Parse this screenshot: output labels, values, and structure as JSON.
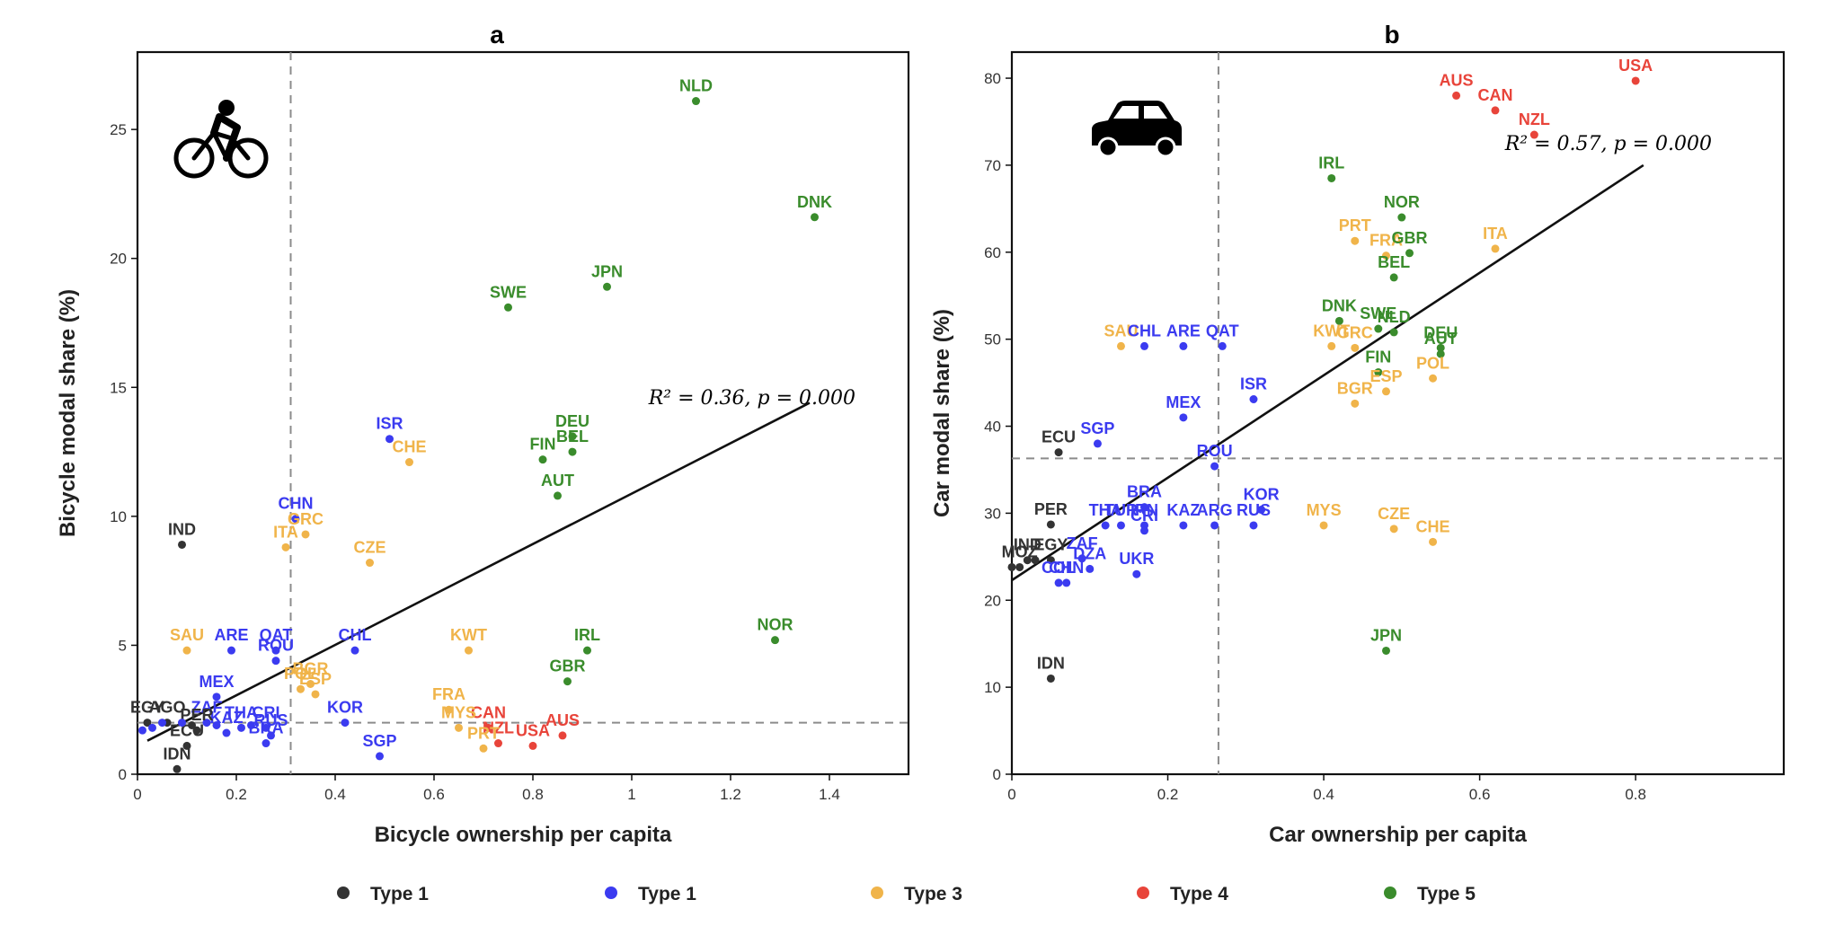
{
  "legend": [
    {
      "label": "Type 1",
      "color": "#333333"
    },
    {
      "label": "Type 1",
      "color": "#3b3bf0"
    },
    {
      "label": "Type 3",
      "color": "#f0b44a"
    },
    {
      "label": "Type 4",
      "color": "#e8443a"
    },
    {
      "label": "Type 5",
      "color": "#3a8c2c"
    }
  ],
  "chart_data": [
    {
      "type": "scatter",
      "panel": "a",
      "icon": "bicycle-icon",
      "xlabel": "Bicycle ownership per capita",
      "ylabel": "Bicycle modal share (%)",
      "xlim": [
        0,
        1.56
      ],
      "ylim": [
        0,
        28
      ],
      "x_ticks": [
        "0",
        "0.2",
        "0.4",
        "0.6",
        "0.8",
        "1",
        "1.2",
        "1.4"
      ],
      "x_tick_values": [
        0,
        0.2,
        0.4,
        0.6,
        0.8,
        1.0,
        1.2,
        1.4
      ],
      "y_ticks": [
        "0",
        "5",
        "10",
        "15",
        "20",
        "25"
      ],
      "y_tick_values": [
        0,
        5,
        10,
        15,
        20,
        25
      ],
      "vline": 0.31,
      "hline": 2.0,
      "fit_line": [
        [
          0.02,
          1.3
        ],
        [
          1.36,
          14.4
        ]
      ],
      "stat": "R² = 0.36, p = 0.000",
      "points": [
        {
          "label": "NLD",
          "x": 1.13,
          "y": 26.1,
          "type": 4
        },
        {
          "label": "DNK",
          "x": 1.37,
          "y": 21.6,
          "type": 4
        },
        {
          "label": "JPN",
          "x": 0.95,
          "y": 18.9,
          "type": 4
        },
        {
          "label": "SWE",
          "x": 0.75,
          "y": 18.1,
          "type": 4
        },
        {
          "label": "ISR",
          "x": 0.51,
          "y": 13.0,
          "type": 1
        },
        {
          "label": "CHE",
          "x": 0.55,
          "y": 12.1,
          "type": 2
        },
        {
          "label": "DEU",
          "x": 0.88,
          "y": 13.1,
          "type": 4
        },
        {
          "label": "FIN",
          "x": 0.82,
          "y": 12.2,
          "type": 4
        },
        {
          "label": "BEL",
          "x": 0.88,
          "y": 12.5,
          "type": 4
        },
        {
          "label": "AUT",
          "x": 0.85,
          "y": 10.8,
          "type": 4
        },
        {
          "label": "IND",
          "x": 0.09,
          "y": 8.9,
          "type": 0
        },
        {
          "label": "CHN",
          "x": 0.32,
          "y": 9.9,
          "type": 1
        },
        {
          "label": "GRC",
          "x": 0.34,
          "y": 9.3,
          "type": 2
        },
        {
          "label": "ITA",
          "x": 0.3,
          "y": 8.8,
          "type": 2
        },
        {
          "label": "CZE",
          "x": 0.47,
          "y": 8.2,
          "type": 2
        },
        {
          "label": "SAU",
          "x": 0.1,
          "y": 4.8,
          "type": 2
        },
        {
          "label": "ARE",
          "x": 0.19,
          "y": 4.8,
          "type": 1
        },
        {
          "label": "QAT",
          "x": 0.28,
          "y": 4.8,
          "type": 1
        },
        {
          "label": "ROU",
          "x": 0.28,
          "y": 4.4,
          "type": 1
        },
        {
          "label": "CHL",
          "x": 0.44,
          "y": 4.8,
          "type": 1
        },
        {
          "label": "KWT",
          "x": 0.67,
          "y": 4.8,
          "type": 2
        },
        {
          "label": "IRL",
          "x": 0.91,
          "y": 4.8,
          "type": 4
        },
        {
          "label": "NOR",
          "x": 1.29,
          "y": 5.2,
          "type": 4
        },
        {
          "label": "GBR",
          "x": 0.87,
          "y": 3.6,
          "type": 4
        },
        {
          "label": "MEX",
          "x": 0.16,
          "y": 3.0,
          "type": 1
        },
        {
          "label": "BGR",
          "x": 0.35,
          "y": 3.5,
          "type": 2
        },
        {
          "label": "POL",
          "x": 0.33,
          "y": 3.3,
          "type": 2
        },
        {
          "label": "ESP",
          "x": 0.36,
          "y": 3.1,
          "type": 2
        },
        {
          "label": "FRA",
          "x": 0.63,
          "y": 2.5,
          "type": 2
        },
        {
          "label": "CAN",
          "x": 0.71,
          "y": 1.8,
          "type": 3
        },
        {
          "label": "USA",
          "x": 0.8,
          "y": 1.1,
          "type": 3
        },
        {
          "label": "AUS",
          "x": 0.86,
          "y": 1.5,
          "type": 3
        },
        {
          "label": "NZL",
          "x": 0.73,
          "y": 1.2,
          "type": 3
        },
        {
          "label": "MYS",
          "x": 0.65,
          "y": 1.8,
          "type": 2
        },
        {
          "label": "PRT",
          "x": 0.7,
          "y": 1.0,
          "type": 2
        },
        {
          "label": "EGY",
          "x": 0.02,
          "y": 2.0,
          "type": 0
        },
        {
          "label": "AGO",
          "x": 0.06,
          "y": 2.0,
          "type": 0
        },
        {
          "label": "ZAF",
          "x": 0.14,
          "y": 2.0,
          "type": 1
        },
        {
          "label": "THA",
          "x": 0.21,
          "y": 1.8,
          "type": 1
        },
        {
          "label": "CRI",
          "x": 0.26,
          "y": 1.8,
          "type": 1
        },
        {
          "label": "KOR",
          "x": 0.42,
          "y": 2.0,
          "type": 1
        },
        {
          "label": "KAZ",
          "x": 0.18,
          "y": 1.6,
          "type": 1
        },
        {
          "label": "RUS",
          "x": 0.27,
          "y": 1.5,
          "type": 1
        },
        {
          "label": "BRA",
          "x": 0.26,
          "y": 1.2,
          "type": 1
        },
        {
          "label": "SGP",
          "x": 0.49,
          "y": 0.7,
          "type": 1
        },
        {
          "label": "PER",
          "x": 0.12,
          "y": 1.7,
          "type": 0
        },
        {
          "label": "ECU",
          "x": 0.1,
          "y": 1.1,
          "type": 0
        },
        {
          "label": "IDN",
          "x": 0.08,
          "y": 0.2,
          "type": 0
        },
        {
          "label": "",
          "x": 0.03,
          "y": 1.8,
          "type": 1
        },
        {
          "label": "",
          "x": 0.05,
          "y": 2.0,
          "type": 1
        },
        {
          "label": "",
          "x": 0.09,
          "y": 2.0,
          "type": 1
        },
        {
          "label": "",
          "x": 0.11,
          "y": 1.9,
          "type": 0
        },
        {
          "label": "",
          "x": 0.16,
          "y": 1.9,
          "type": 1
        },
        {
          "label": "",
          "x": 0.23,
          "y": 1.9,
          "type": 1
        },
        {
          "label": "",
          "x": 0.01,
          "y": 1.7,
          "type": 1
        }
      ]
    },
    {
      "type": "scatter",
      "panel": "b",
      "icon": "car-icon",
      "xlabel": "Car ownership per capita",
      "ylabel": "Car modal share (%)",
      "xlim": [
        0,
        0.99
      ],
      "ylim": [
        0,
        83
      ],
      "x_ticks": [
        "0",
        "0.2",
        "0.4",
        "0.6",
        "0.8"
      ],
      "x_tick_values": [
        0,
        0.2,
        0.4,
        0.6,
        0.8
      ],
      "y_ticks": [
        "0",
        "10",
        "20",
        "30",
        "40",
        "50",
        "60",
        "70",
        "80"
      ],
      "y_tick_values": [
        0,
        10,
        20,
        30,
        40,
        50,
        60,
        70,
        80
      ],
      "vline": 0.265,
      "hline": 36.3,
      "fit_line": [
        [
          0.0,
          22.3
        ],
        [
          0.81,
          70.0
        ]
      ],
      "stat": "R² = 0.57, p = 0.000",
      "points": [
        {
          "label": "AUS",
          "x": 0.57,
          "y": 78.0,
          "type": 3
        },
        {
          "label": "CAN",
          "x": 0.62,
          "y": 76.3,
          "type": 3
        },
        {
          "label": "NZL",
          "x": 0.67,
          "y": 73.5,
          "type": 3
        },
        {
          "label": "USA",
          "x": 0.8,
          "y": 79.7,
          "type": 3
        },
        {
          "label": "IRL",
          "x": 0.41,
          "y": 68.5,
          "type": 4
        },
        {
          "label": "NOR",
          "x": 0.5,
          "y": 64.0,
          "type": 4
        },
        {
          "label": "PRT",
          "x": 0.44,
          "y": 61.3,
          "type": 2
        },
        {
          "label": "FRA",
          "x": 0.48,
          "y": 59.6,
          "type": 2
        },
        {
          "label": "GBR",
          "x": 0.51,
          "y": 59.9,
          "type": 4
        },
        {
          "label": "ITA",
          "x": 0.62,
          "y": 60.4,
          "type": 2
        },
        {
          "label": "BEL",
          "x": 0.49,
          "y": 57.1,
          "type": 4
        },
        {
          "label": "DNK",
          "x": 0.42,
          "y": 52.1,
          "type": 4
        },
        {
          "label": "SWE",
          "x": 0.47,
          "y": 51.2,
          "type": 4
        },
        {
          "label": "NLD",
          "x": 0.49,
          "y": 50.8,
          "type": 4
        },
        {
          "label": "KWT",
          "x": 0.41,
          "y": 49.2,
          "type": 2
        },
        {
          "label": "GRC",
          "x": 0.44,
          "y": 49.0,
          "type": 2
        },
        {
          "label": "FIN",
          "x": 0.47,
          "y": 46.2,
          "type": 4
        },
        {
          "label": "DEU",
          "x": 0.55,
          "y": 49.0,
          "type": 4
        },
        {
          "label": "AUT",
          "x": 0.55,
          "y": 48.3,
          "type": 4
        },
        {
          "label": "BGR",
          "x": 0.44,
          "y": 42.6,
          "type": 2
        },
        {
          "label": "ESP",
          "x": 0.48,
          "y": 44.0,
          "type": 2
        },
        {
          "label": "POL",
          "x": 0.54,
          "y": 45.5,
          "type": 2
        },
        {
          "label": "SAU",
          "x": 0.14,
          "y": 49.2,
          "type": 2
        },
        {
          "label": "CHL",
          "x": 0.17,
          "y": 49.2,
          "type": 1
        },
        {
          "label": "ARE",
          "x": 0.22,
          "y": 49.2,
          "type": 1
        },
        {
          "label": "QAT",
          "x": 0.27,
          "y": 49.2,
          "type": 1
        },
        {
          "label": "ISR",
          "x": 0.31,
          "y": 43.1,
          "type": 1
        },
        {
          "label": "MEX",
          "x": 0.22,
          "y": 41.0,
          "type": 1
        },
        {
          "label": "SGP",
          "x": 0.11,
          "y": 38.0,
          "type": 1
        },
        {
          "label": "ECU",
          "x": 0.06,
          "y": 37.0,
          "type": 0
        },
        {
          "label": "ROU",
          "x": 0.26,
          "y": 35.4,
          "type": 1
        },
        {
          "label": "BRA",
          "x": 0.17,
          "y": 30.7,
          "type": 1
        },
        {
          "label": "KOR",
          "x": 0.32,
          "y": 30.4,
          "type": 1
        },
        {
          "label": "PER",
          "x": 0.05,
          "y": 28.7,
          "type": 0
        },
        {
          "label": "THA",
          "x": 0.12,
          "y": 28.6,
          "type": 1
        },
        {
          "label": "TUR",
          "x": 0.14,
          "y": 28.6,
          "type": 1
        },
        {
          "label": "IRN",
          "x": 0.17,
          "y": 28.6,
          "type": 1
        },
        {
          "label": "KAZ",
          "x": 0.22,
          "y": 28.6,
          "type": 1
        },
        {
          "label": "ARG",
          "x": 0.26,
          "y": 28.6,
          "type": 1
        },
        {
          "label": "RUS",
          "x": 0.31,
          "y": 28.6,
          "type": 1
        },
        {
          "label": "ZAF",
          "x": 0.09,
          "y": 24.8,
          "type": 1
        },
        {
          "label": "CRI",
          "x": 0.17,
          "y": 28.0,
          "type": 1
        },
        {
          "label": "MYS",
          "x": 0.4,
          "y": 28.6,
          "type": 2
        },
        {
          "label": "CZE",
          "x": 0.49,
          "y": 28.2,
          "type": 2
        },
        {
          "label": "CHE",
          "x": 0.54,
          "y": 26.7,
          "type": 2
        },
        {
          "label": "IND",
          "x": 0.02,
          "y": 24.6,
          "type": 0
        },
        {
          "label": "EGY",
          "x": 0.05,
          "y": 24.6,
          "type": 0
        },
        {
          "label": "DZA",
          "x": 0.1,
          "y": 23.6,
          "type": 1
        },
        {
          "label": "UKR",
          "x": 0.16,
          "y": 23.0,
          "type": 1
        },
        {
          "label": "MOZ",
          "x": 0.01,
          "y": 23.8,
          "type": 0
        },
        {
          "label": "CHN",
          "x": 0.07,
          "y": 22.0,
          "type": 1
        },
        {
          "label": "COL",
          "x": 0.06,
          "y": 22.0,
          "type": 1
        },
        {
          "label": "JPN",
          "x": 0.48,
          "y": 14.2,
          "type": 4
        },
        {
          "label": "IDN",
          "x": 0.05,
          "y": 11.0,
          "type": 0
        },
        {
          "label": "",
          "x": 0.03,
          "y": 24.6,
          "type": 0
        },
        {
          "label": "",
          "x": 0.0,
          "y": 23.8,
          "type": 0
        }
      ]
    }
  ]
}
